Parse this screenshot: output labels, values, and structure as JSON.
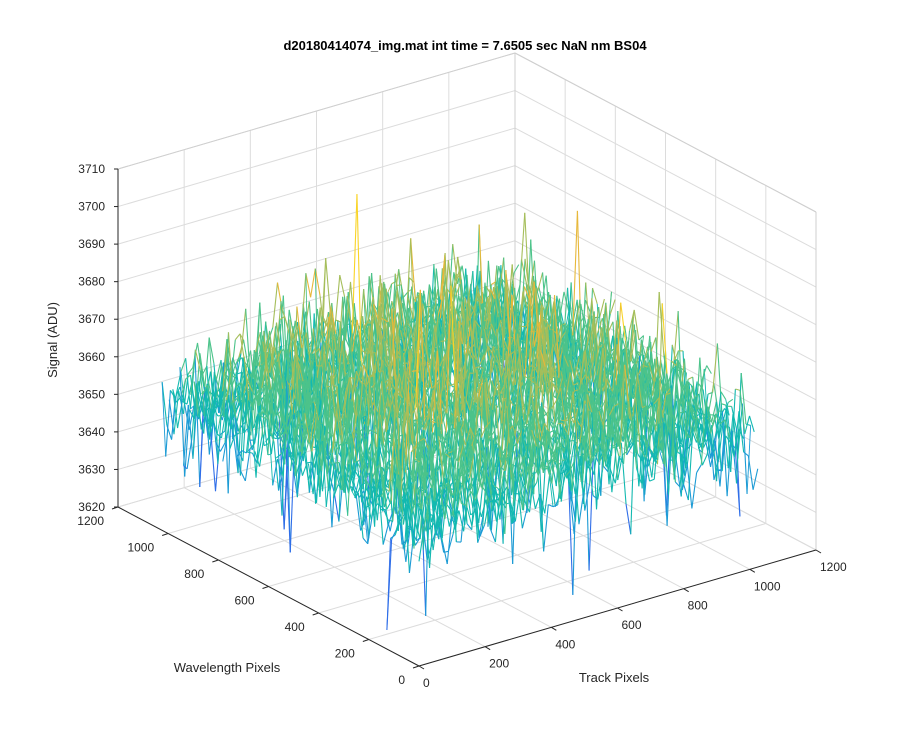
{
  "chart_data": {
    "type": "surface3d",
    "title": "d20180414074_img.mat int time = 7.6505 sec  NaN nm BS04",
    "xlabel": "Track Pixels",
    "ylabel": "Wavelength Pixels",
    "zlabel": "Signal (ADU)",
    "xlim": [
      0,
      1200
    ],
    "ylim": [
      0,
      1200
    ],
    "zlim": [
      3620,
      3710
    ],
    "xticks": [
      "0",
      "200",
      "400",
      "600",
      "800",
      "1000",
      "1200"
    ],
    "yticks": [
      "0",
      "200",
      "400",
      "600",
      "800",
      "1000",
      "1200"
    ],
    "zticks": [
      "3620",
      "3630",
      "3640",
      "3650",
      "3660",
      "3670",
      "3680",
      "3690",
      "3700",
      "3710"
    ],
    "grid": true,
    "colormap": [
      "#3e26a8",
      "#2f6ee8",
      "#1c9bd5",
      "#13b9b0",
      "#4cc38a",
      "#a5be5a",
      "#e7b83a",
      "#f9d427"
    ],
    "data_extent": {
      "x": [
        0,
        1024
      ],
      "y": [
        0,
        1024
      ]
    },
    "signal_summary": {
      "mean": 3655,
      "typical_range": [
        3638,
        3685
      ],
      "min_observed": 3622,
      "max_observed": 3709
    }
  }
}
